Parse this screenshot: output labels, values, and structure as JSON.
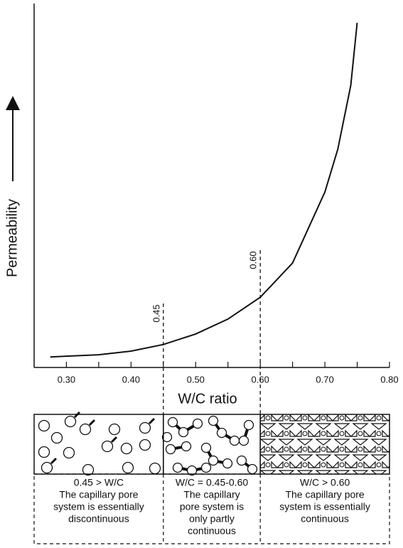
{
  "chart_data": {
    "type": "line",
    "x_label": "W/C ratio",
    "y_label": "Permeability",
    "x": [
      0.275,
      0.3,
      0.35,
      0.4,
      0.45,
      0.5,
      0.55,
      0.6,
      0.65,
      0.7,
      0.72,
      0.74,
      0.75
    ],
    "values": [
      2.9,
      3.1,
      3.5,
      4.5,
      6.3,
      9.2,
      13.3,
      19.3,
      28.7,
      48.2,
      60,
      77.5,
      94.7
    ],
    "color": "#111111",
    "xlim": [
      0.25,
      0.8
    ],
    "ylim": [
      0,
      100
    ],
    "xticks": [
      {
        "value": 0.3,
        "label": "0.30"
      },
      {
        "value": 0.4,
        "label": "0.40"
      },
      {
        "value": 0.5,
        "label": "0.50"
      },
      {
        "value": 0.6,
        "label": "0.60"
      },
      {
        "value": 0.7,
        "label": "0.70"
      },
      {
        "value": 0.8,
        "label": "0.80"
      }
    ],
    "xminorticks": [
      0.35,
      0.45,
      0.55,
      0.65,
      0.75
    ],
    "thresholds": [
      {
        "value": 0.45,
        "label": "0.45"
      },
      {
        "value": 0.6,
        "label": "0.60"
      }
    ],
    "panels": [
      {
        "lines": [
          "0.45 > W/C",
          "The capillary pore",
          "system is essentially",
          "discontinuous"
        ]
      },
      {
        "lines": [
          "W/C = 0.45-0.60",
          "The capillary",
          "pore system is",
          "only partly",
          "continuous"
        ]
      },
      {
        "lines": [
          "W/C > 0.60",
          "The capillary pore",
          "system is essentially",
          "continuous"
        ]
      }
    ]
  }
}
